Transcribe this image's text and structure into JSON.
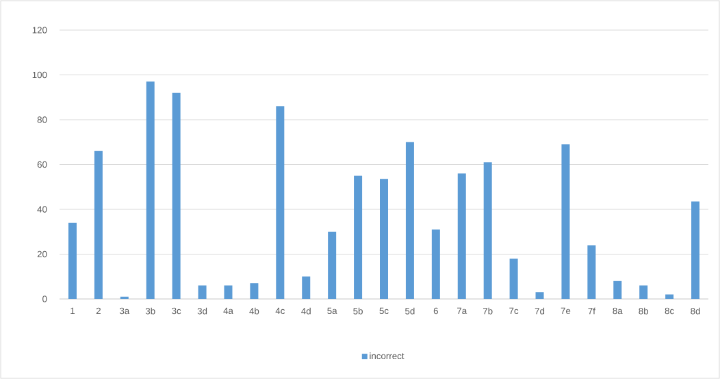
{
  "chart_data": {
    "type": "bar",
    "categories": [
      "1",
      "2",
      "3a",
      "3b",
      "3c",
      "3d",
      "4a",
      "4b",
      "4c",
      "4d",
      "5a",
      "5b",
      "5c",
      "5d",
      "6",
      "7a",
      "7b",
      "7c",
      "7d",
      "7e",
      "7f",
      "8a",
      "8b",
      "8c",
      "8d"
    ],
    "series": [
      {
        "name": "incorrect",
        "color": "#5b9bd5",
        "values": [
          34,
          66,
          1,
          97,
          92,
          6,
          6,
          7,
          86,
          10,
          30,
          55,
          53.5,
          70,
          31,
          56,
          61,
          18,
          3,
          69,
          24,
          8,
          6,
          2,
          43.5
        ]
      }
    ],
    "ylim": [
      0,
      120
    ],
    "yticks": [
      0,
      20,
      40,
      60,
      80,
      100,
      120
    ],
    "grid": "y",
    "legend": "bottom"
  }
}
